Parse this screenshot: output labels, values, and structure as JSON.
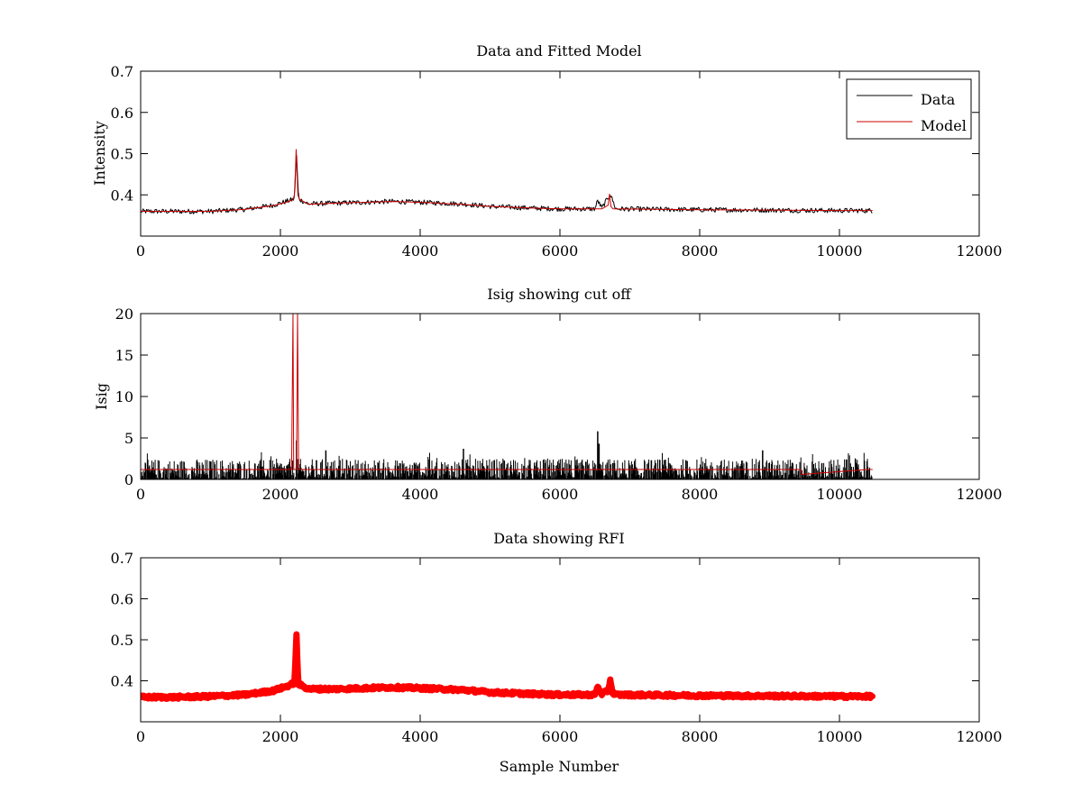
{
  "figure": {
    "background": "#ffffff"
  },
  "chart_data": [
    {
      "type": "line",
      "title": "Data and Fitted Model",
      "xlabel": "",
      "ylabel": "Intensity",
      "xlim": [
        0,
        12000
      ],
      "ylim": [
        0.3,
        0.7
      ],
      "xticks": [
        0,
        2000,
        4000,
        6000,
        8000,
        10000,
        12000
      ],
      "yticks": [
        0.4,
        0.5,
        0.6,
        0.7
      ],
      "grid": false,
      "legend": "top-right",
      "series": [
        {
          "name": "Data",
          "color": "#000000",
          "style": "line",
          "x": [
            0,
            500,
            1000,
            1500,
            1900,
            2100,
            2200,
            2230,
            2260,
            2400,
            2800,
            3200,
            3600,
            4000,
            4600,
            5000,
            5600,
            6000,
            6500,
            6540,
            6600,
            6720,
            6800,
            7400,
            8000,
            9000,
            10000,
            10470
          ],
          "y": [
            0.36,
            0.36,
            0.36,
            0.365,
            0.375,
            0.385,
            0.39,
            0.5,
            0.39,
            0.378,
            0.38,
            0.382,
            0.384,
            0.382,
            0.378,
            0.372,
            0.368,
            0.366,
            0.366,
            0.386,
            0.368,
            0.402,
            0.366,
            0.365,
            0.364,
            0.363,
            0.362,
            0.362
          ],
          "noise": 0.006
        },
        {
          "name": "Model",
          "color": "#cc0000",
          "style": "line",
          "x": [
            0,
            500,
            1000,
            1500,
            1900,
            2100,
            2180,
            2200,
            2215,
            2225,
            2235,
            2250,
            2270,
            2400,
            2800,
            3200,
            3600,
            4000,
            4600,
            5000,
            5600,
            6000,
            6600,
            6690,
            6710,
            6730,
            6760,
            7400,
            8000,
            9000,
            10000,
            10470
          ],
          "y": [
            0.36,
            0.36,
            0.36,
            0.365,
            0.374,
            0.383,
            0.388,
            0.4,
            0.46,
            0.51,
            0.47,
            0.4,
            0.39,
            0.377,
            0.38,
            0.382,
            0.384,
            0.382,
            0.377,
            0.372,
            0.368,
            0.366,
            0.366,
            0.375,
            0.402,
            0.372,
            0.366,
            0.365,
            0.364,
            0.363,
            0.362,
            0.362
          ]
        }
      ]
    },
    {
      "type": "line",
      "title": "Isig showing cut off",
      "xlabel": "",
      "ylabel": "Isig",
      "xlim": [
        0,
        12000
      ],
      "ylim": [
        0,
        20
      ],
      "xticks": [
        0,
        2000,
        4000,
        6000,
        8000,
        10000,
        12000
      ],
      "yticks": [
        0,
        5,
        10,
        15,
        20
      ],
      "grid": false,
      "series": [
        {
          "name": "",
          "color": "#000000",
          "style": "spikes",
          "x_range": [
            0,
            10470
          ],
          "typical_max": 2.5,
          "peaks": [
            {
              "x": 2230,
              "y": 4.7
            },
            {
              "x": 4620,
              "y": 3.7
            },
            {
              "x": 6540,
              "y": 5.8
            },
            {
              "x": 6560,
              "y": 4.3
            },
            {
              "x": 8900,
              "y": 3.5
            },
            {
              "x": 2650,
              "y": 3.5
            }
          ]
        },
        {
          "name": "",
          "color": "#cc0000",
          "style": "line",
          "x": [
            0,
            2160,
            2180,
            2190,
            2230,
            2245,
            2260,
            2280,
            9440,
            9460,
            10400,
            10470
          ],
          "y": [
            1.2,
            1.2,
            20,
            1.2,
            1.2,
            20,
            1.2,
            1.2,
            1.2,
            0.6,
            1.2,
            1.2
          ]
        }
      ]
    },
    {
      "type": "scatter",
      "title": "Data showing RFI",
      "xlabel": "Sample Number",
      "ylabel": "",
      "xlim": [
        0,
        12000
      ],
      "ylim": [
        0.3,
        0.7
      ],
      "xticks": [
        0,
        2000,
        4000,
        6000,
        8000,
        10000,
        12000
      ],
      "yticks": [
        0.4,
        0.5,
        0.6,
        0.7
      ],
      "grid": false,
      "series": [
        {
          "name": "",
          "color": "#ff0000",
          "style": "thick-line",
          "x": [
            0,
            500,
            1000,
            1500,
            1900,
            2100,
            2200,
            2215,
            2230,
            2245,
            2260,
            2400,
            2800,
            3200,
            3600,
            4000,
            4600,
            5000,
            5600,
            6000,
            6500,
            6540,
            6600,
            6690,
            6720,
            6750,
            6800,
            7400,
            8000,
            9000,
            10000,
            10470
          ],
          "y": [
            0.36,
            0.36,
            0.362,
            0.366,
            0.376,
            0.387,
            0.395,
            0.45,
            0.51,
            0.43,
            0.392,
            0.38,
            0.38,
            0.382,
            0.384,
            0.382,
            0.378,
            0.372,
            0.368,
            0.366,
            0.366,
            0.385,
            0.368,
            0.376,
            0.404,
            0.372,
            0.366,
            0.365,
            0.364,
            0.363,
            0.362,
            0.362
          ]
        }
      ]
    }
  ]
}
